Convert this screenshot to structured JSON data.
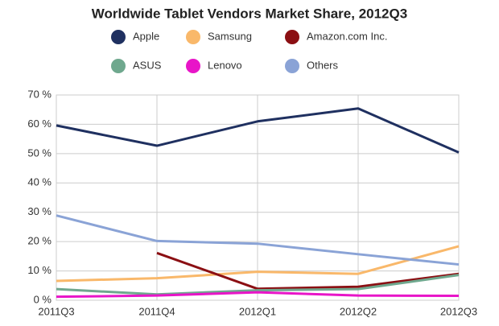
{
  "chart_data": {
    "type": "line",
    "title": "Worldwide Tablet Vendors Market Share, 2012Q3",
    "categories": [
      "2011Q3",
      "2011Q4",
      "2012Q1",
      "2012Q2",
      "2012Q3"
    ],
    "series": [
      {
        "name": "Apple",
        "color": "#1f3060",
        "values": [
          59.6,
          52.7,
          61.0,
          65.4,
          50.4
        ]
      },
      {
        "name": "Samsung",
        "color": "#f9b86a",
        "values": [
          6.6,
          7.5,
          9.7,
          9.0,
          18.4
        ]
      },
      {
        "name": "Amazon.com Inc.",
        "color": "#8b0f13",
        "values": [
          null,
          16.1,
          3.9,
          4.6,
          9.0
        ]
      },
      {
        "name": "ASUS",
        "color": "#6fa88e",
        "values": [
          3.8,
          2.0,
          3.4,
          3.8,
          8.6
        ]
      },
      {
        "name": "Lenovo",
        "color": "#e815c8",
        "values": [
          1.2,
          1.6,
          2.7,
          1.6,
          1.5
        ]
      },
      {
        "name": "Others",
        "color": "#8aa3d6",
        "values": [
          28.9,
          20.2,
          19.3,
          15.7,
          12.2
        ]
      }
    ],
    "ylim": [
      0,
      70
    ],
    "yticks": [
      {
        "value": 0,
        "label": "0 %"
      },
      {
        "value": 10,
        "label": "10 %"
      },
      {
        "value": 20,
        "label": "20 %"
      },
      {
        "value": 30,
        "label": "30 %"
      },
      {
        "value": 40,
        "label": "40 %"
      },
      {
        "value": 50,
        "label": "50 %"
      },
      {
        "value": 60,
        "label": "60 %"
      },
      {
        "value": 70,
        "label": "70 %"
      }
    ],
    "grid": true
  }
}
